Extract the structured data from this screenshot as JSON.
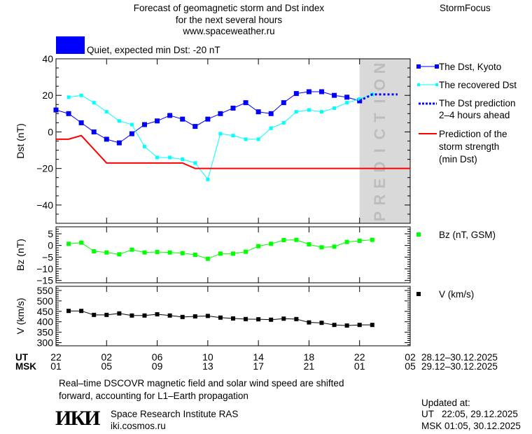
{
  "header": {
    "title_lines": [
      "Forecast of geomagnetic storm and Dst index",
      "for the next several hours",
      "www.spaceweather.ru"
    ],
    "brand": "StormFocus",
    "status_color": "#0000ff",
    "status_text": "Quiet, expected min Dst: -20 nT"
  },
  "colors": {
    "dst_kyoto": "#0000ff",
    "recovered": "#00ffff",
    "prediction": "#0000ff",
    "storm_strength": "#ff0000",
    "bz": "#00ff00",
    "v": "#000000",
    "prediction_zone": "#d9d9d9"
  },
  "chart_data": [
    {
      "type": "line",
      "ylabel": "Dst (nT)",
      "ylim": [
        -50,
        40
      ],
      "yticks": [
        40,
        20,
        0,
        -20,
        -40
      ],
      "prediction_zone_label": "PREDICTION",
      "prediction_zone_hours": [
        24,
        28
      ],
      "series": [
        {
          "name": "The Dst, Kyoto",
          "hours": [
            0,
            1,
            2,
            3,
            4,
            5,
            6,
            7,
            8,
            9,
            10,
            11,
            12,
            13,
            14,
            15,
            16,
            17,
            18,
            19,
            20,
            21,
            22,
            23,
            24
          ],
          "values": [
            12,
            10,
            5,
            0,
            -4,
            -6,
            -1,
            4,
            6,
            9,
            7,
            3,
            7,
            10,
            13,
            16,
            11,
            10,
            16,
            21,
            22,
            22,
            20,
            19,
            17
          ]
        },
        {
          "name": "The recovered Dst",
          "hours": [
            1,
            2,
            3,
            4,
            5,
            6,
            7,
            8,
            9,
            10,
            11,
            12,
            13,
            14,
            15,
            16,
            17,
            18,
            19,
            20,
            21,
            22,
            23,
            24,
            25
          ],
          "values": [
            19,
            20,
            16,
            11,
            6,
            4,
            -8,
            -14,
            -14,
            -15,
            -17,
            -26,
            -1,
            -2,
            -4,
            -4,
            2,
            5,
            11,
            12,
            11,
            13,
            16,
            18,
            20.5
          ]
        },
        {
          "name": "The Dst prediction 2-4 hours ahead",
          "hours": [
            24,
            25,
            27
          ],
          "values": [
            17,
            20.5,
            20.5
          ]
        },
        {
          "name": "Prediction of the storm strength (min Dst)",
          "hours": [
            0,
            1,
            2,
            4,
            10,
            11,
            28
          ],
          "values": [
            -4,
            -4,
            -2,
            -17,
            -17,
            -20,
            -20
          ]
        }
      ]
    },
    {
      "type": "line",
      "ylabel": "Bz (nT)",
      "ylim": [
        -16,
        8
      ],
      "yticks": [
        5,
        0,
        -5,
        -10,
        -15
      ],
      "series": [
        {
          "name": "Bz (nT, GSM)",
          "hours": [
            1,
            2,
            3,
            4,
            5,
            6,
            7,
            8,
            9,
            10,
            11,
            12,
            13,
            14,
            15,
            16,
            17,
            18,
            19,
            20,
            21,
            22,
            23,
            24,
            25
          ],
          "values": [
            0.7,
            1.2,
            -2.5,
            -3,
            -3.8,
            -1.8,
            -3,
            -2.8,
            -3,
            -3.3,
            -4,
            -5.7,
            -3.5,
            -3.5,
            -2.7,
            -0.3,
            0.7,
            2.3,
            2.4,
            0.5,
            -0.8,
            -0.5,
            1.5,
            2,
            2.4
          ]
        }
      ]
    },
    {
      "type": "line",
      "ylabel": "V (km/s)",
      "ylim": [
        285,
        570
      ],
      "yticks": [
        550,
        500,
        450,
        400,
        350,
        300
      ],
      "series": [
        {
          "name": "V (km/s)",
          "hours": [
            1,
            2,
            3,
            4,
            5,
            6,
            7,
            8,
            9,
            10,
            11,
            12,
            13,
            14,
            15,
            16,
            17,
            18,
            19,
            20,
            21,
            22,
            23,
            24,
            25
          ],
          "values": [
            452,
            452,
            433,
            433,
            440,
            430,
            430,
            436,
            430,
            423,
            426,
            428,
            420,
            416,
            413,
            412,
            410,
            415,
            413,
            397,
            395,
            385,
            382,
            385,
            385
          ]
        }
      ]
    }
  ],
  "xaxis": {
    "ut_label": "UT",
    "msk_label": "MSK",
    "ut_ticks": [
      "22",
      "02",
      "06",
      "10",
      "14",
      "18",
      "22",
      "02"
    ],
    "msk_ticks": [
      "01",
      "05",
      "09",
      "13",
      "17",
      "21",
      "01",
      "05"
    ],
    "ut_range": "28.12–30.12.2025",
    "msk_range": "29.12–30.12.2025"
  },
  "legend": {
    "dst_kyoto": "The Dst, Kyoto",
    "recovered": "The recovered Dst",
    "prediction_lines": [
      "The Dst prediction",
      "2–4 hours ahead"
    ],
    "storm_lines": [
      "Prediction of the",
      "storm strength",
      "(min Dst)"
    ],
    "bz": "Bz (nT, GSM)",
    "v": "V (km/s)"
  },
  "footer": {
    "note_lines": [
      "Real–time DSCOVR magnetic field and solar wind speed are shifted",
      "forward, accounting for L1–Earth propagation"
    ],
    "logo_text": "ИКИ",
    "institute": "Space Research Institute RAS",
    "site": "iki.cosmos.ru",
    "updated_label": "Updated at:",
    "updated_ut": "UT   22:05, 29.12.2025",
    "updated_msk": "MSK 01:05, 30.12.2025"
  }
}
